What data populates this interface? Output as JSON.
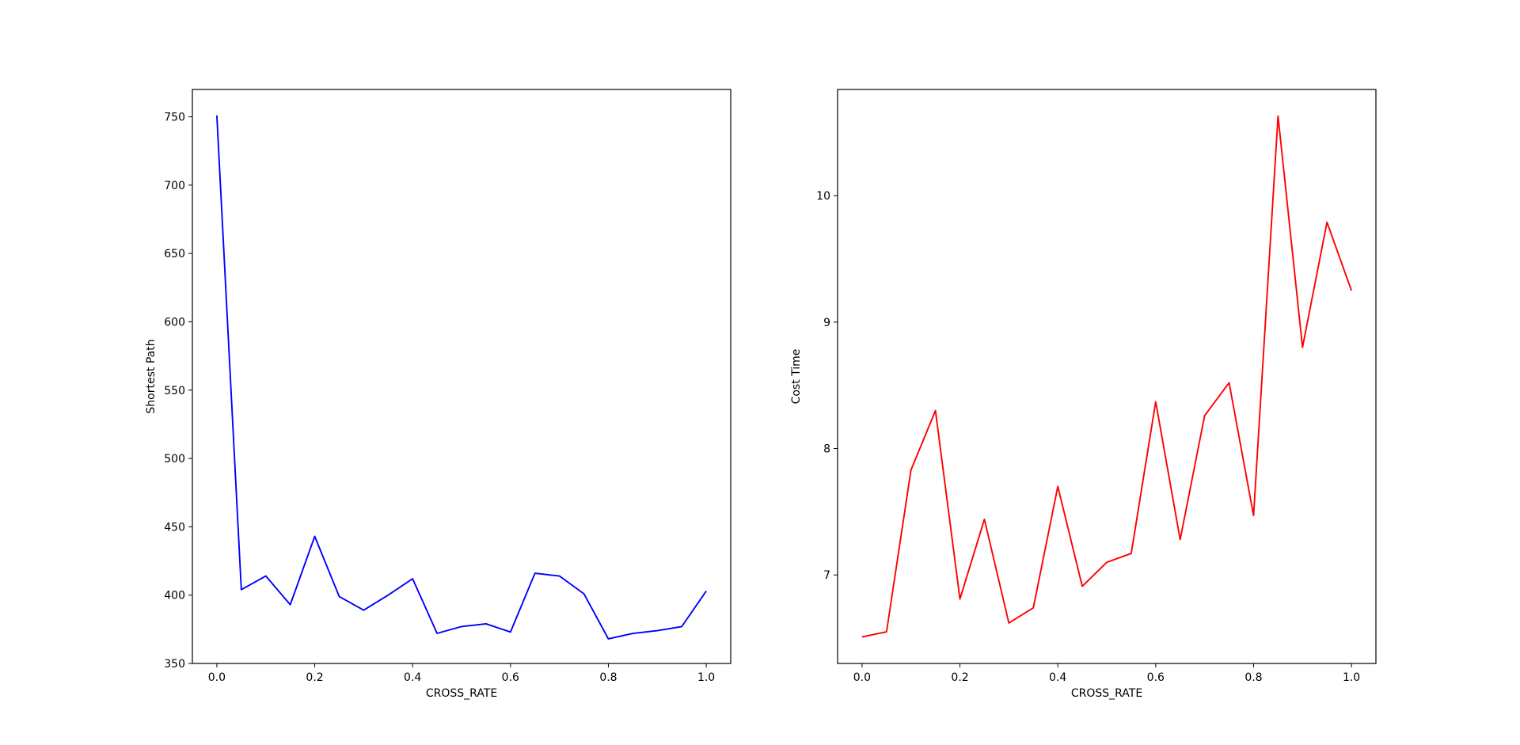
{
  "chart_data": [
    {
      "type": "line",
      "xlabel": "CROSS_RATE",
      "ylabel": "Shortest Path",
      "xlim": [
        -0.05,
        1.05
      ],
      "ylim": [
        350,
        770
      ],
      "xticks": [
        0.0,
        0.2,
        0.4,
        0.6,
        0.8,
        1.0
      ],
      "xtick_labels": [
        "0.0",
        "0.2",
        "0.4",
        "0.6",
        "0.8",
        "1.0"
      ],
      "yticks": [
        350,
        400,
        450,
        500,
        550,
        600,
        650,
        700,
        750
      ],
      "ytick_labels": [
        "350",
        "400",
        "450",
        "500",
        "550",
        "600",
        "650",
        "700",
        "750"
      ],
      "grid": false,
      "color": "#0000ff",
      "x": [
        0.0,
        0.05,
        0.1,
        0.15,
        0.2,
        0.25,
        0.3,
        0.35,
        0.4,
        0.45,
        0.5,
        0.55,
        0.6,
        0.65,
        0.7,
        0.75,
        0.8,
        0.85,
        0.9,
        0.95,
        1.0
      ],
      "y": [
        751,
        404,
        414,
        393,
        443,
        399,
        389,
        400,
        412,
        372,
        377,
        379,
        373,
        416,
        414,
        401,
        368,
        372,
        374,
        377,
        403
      ]
    },
    {
      "type": "line",
      "xlabel": "CROSS_RATE",
      "ylabel": "Cost Time",
      "xlim": [
        -0.05,
        1.05
      ],
      "ylim": [
        6.3,
        10.84
      ],
      "xticks": [
        0.0,
        0.2,
        0.4,
        0.6,
        0.8,
        1.0
      ],
      "xtick_labels": [
        "0.0",
        "0.2",
        "0.4",
        "0.6",
        "0.8",
        "1.0"
      ],
      "yticks": [
        7,
        8,
        9,
        10
      ],
      "ytick_labels": [
        "7",
        "8",
        "9",
        "10"
      ],
      "grid": false,
      "color": "#ff0000",
      "x": [
        0.0,
        0.05,
        0.1,
        0.15,
        0.2,
        0.25,
        0.3,
        0.35,
        0.4,
        0.45,
        0.5,
        0.55,
        0.6,
        0.65,
        0.7,
        0.75,
        0.8,
        0.85,
        0.9,
        0.95,
        1.0
      ],
      "y": [
        6.51,
        6.55,
        7.83,
        8.3,
        6.81,
        7.44,
        6.62,
        6.74,
        7.7,
        6.91,
        7.1,
        7.17,
        8.37,
        7.28,
        8.26,
        8.52,
        7.47,
        10.63,
        8.8,
        9.79,
        9.25
      ]
    }
  ]
}
